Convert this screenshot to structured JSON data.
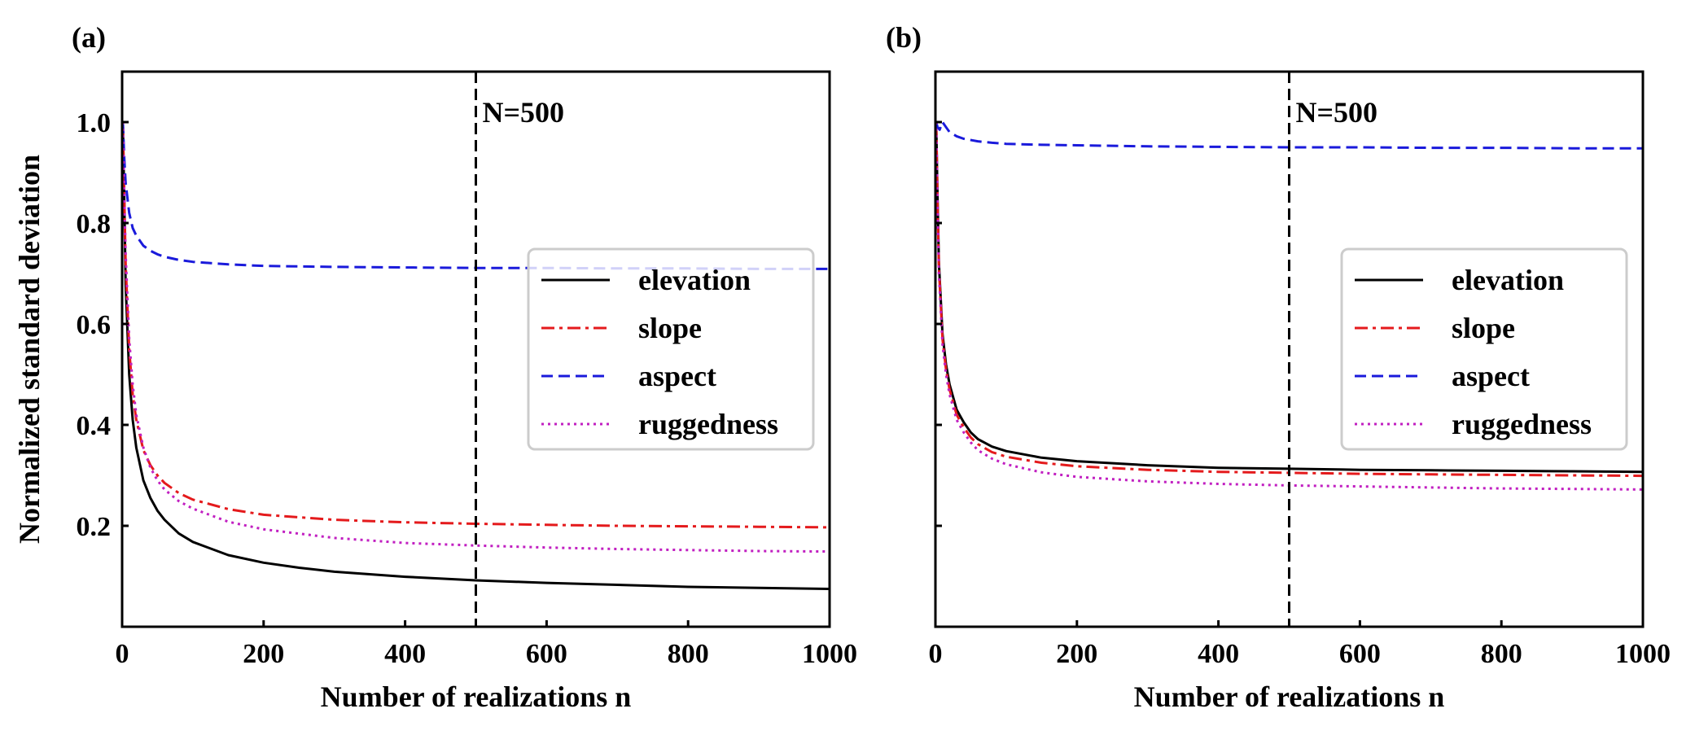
{
  "chart_data": [
    {
      "type": "line",
      "panel_label": "(a)",
      "xlabel": "Number of realizations n",
      "ylabel": "Normalized standard deviation",
      "xlim": [
        0,
        1000
      ],
      "ylim": [
        0,
        1.1
      ],
      "xticks": [
        0,
        200,
        400,
        600,
        800,
        1000
      ],
      "xtick_labels": [
        "0",
        "200",
        "400",
        "600",
        "800",
        "1000"
      ],
      "yticks": [
        0.2,
        0.4,
        0.6,
        0.8,
        1.0
      ],
      "ytick_labels": [
        "0.2",
        "0.4",
        "0.6",
        "0.8",
        "1.0"
      ],
      "vline": {
        "x": 500,
        "label": "N=500",
        "style": "dashed",
        "color": "#000000"
      },
      "legend_position": "right",
      "grid": false,
      "series": [
        {
          "name": "elevation",
          "color": "#000000",
          "style": "solid",
          "x": [
            1,
            3,
            5,
            10,
            15,
            20,
            30,
            40,
            50,
            60,
            80,
            100,
            150,
            200,
            250,
            300,
            400,
            500,
            600,
            700,
            800,
            900,
            1000
          ],
          "y": [
            1.0,
            0.85,
            0.68,
            0.5,
            0.41,
            0.355,
            0.29,
            0.255,
            0.23,
            0.212,
            0.185,
            0.168,
            0.142,
            0.127,
            0.117,
            0.109,
            0.099,
            0.092,
            0.087,
            0.083,
            0.079,
            0.077,
            0.075
          ]
        },
        {
          "name": "slope",
          "color": "#e41a1c",
          "style": "dashdot",
          "x": [
            1,
            3,
            5,
            10,
            15,
            20,
            30,
            40,
            50,
            60,
            80,
            100,
            150,
            200,
            300,
            400,
            500,
            600,
            700,
            800,
            900,
            1000
          ],
          "y": [
            1.0,
            0.86,
            0.72,
            0.55,
            0.46,
            0.41,
            0.35,
            0.32,
            0.3,
            0.285,
            0.265,
            0.252,
            0.233,
            0.222,
            0.212,
            0.207,
            0.204,
            0.202,
            0.2,
            0.199,
            0.198,
            0.197
          ]
        },
        {
          "name": "aspect",
          "color": "#1a1adb",
          "style": "dashed",
          "x": [
            1,
            3,
            5,
            10,
            15,
            20,
            30,
            40,
            50,
            60,
            80,
            100,
            150,
            200,
            300,
            400,
            500,
            600,
            700,
            800,
            900,
            1000
          ],
          "y": [
            1.0,
            0.93,
            0.88,
            0.82,
            0.79,
            0.775,
            0.755,
            0.745,
            0.738,
            0.733,
            0.727,
            0.723,
            0.718,
            0.715,
            0.713,
            0.712,
            0.711,
            0.711,
            0.71,
            0.71,
            0.709,
            0.709
          ]
        },
        {
          "name": "ruggedness",
          "color": "#c11fc1",
          "style": "dotted",
          "x": [
            1,
            3,
            5,
            10,
            15,
            20,
            30,
            40,
            50,
            60,
            80,
            100,
            150,
            200,
            300,
            400,
            500,
            600,
            700,
            800,
            900,
            1000
          ],
          "y": [
            1.0,
            0.86,
            0.74,
            0.57,
            0.48,
            0.42,
            0.355,
            0.315,
            0.29,
            0.272,
            0.249,
            0.234,
            0.208,
            0.193,
            0.176,
            0.166,
            0.161,
            0.157,
            0.154,
            0.152,
            0.15,
            0.149
          ]
        }
      ]
    },
    {
      "type": "line",
      "panel_label": "(b)",
      "xlabel": "Number of realizations n",
      "ylabel": "",
      "xlim": [
        0,
        1000
      ],
      "ylim": [
        0,
        1.1
      ],
      "xticks": [
        0,
        200,
        400,
        600,
        800,
        1000
      ],
      "xtick_labels": [
        "0",
        "200",
        "400",
        "600",
        "800",
        "1000"
      ],
      "yticks": [
        0.2,
        0.4,
        0.6,
        0.8,
        1.0
      ],
      "ytick_labels": [],
      "vline": {
        "x": 500,
        "label": "N=500",
        "style": "dashed",
        "color": "#000000"
      },
      "legend_position": "right",
      "grid": false,
      "series": [
        {
          "name": "elevation",
          "color": "#000000",
          "style": "solid",
          "x": [
            1,
            3,
            5,
            10,
            15,
            20,
            30,
            40,
            50,
            60,
            80,
            100,
            150,
            200,
            300,
            400,
            500,
            600,
            700,
            800,
            900,
            1000
          ],
          "y": [
            1.0,
            0.85,
            0.72,
            0.58,
            0.52,
            0.48,
            0.43,
            0.405,
            0.385,
            0.372,
            0.357,
            0.348,
            0.335,
            0.328,
            0.32,
            0.315,
            0.313,
            0.311,
            0.31,
            0.309,
            0.308,
            0.307
          ]
        },
        {
          "name": "slope",
          "color": "#e41a1c",
          "style": "dashdot",
          "x": [
            1,
            3,
            5,
            10,
            15,
            20,
            30,
            40,
            50,
            60,
            80,
            100,
            150,
            200,
            300,
            400,
            500,
            600,
            700,
            800,
            900,
            1000
          ],
          "y": [
            1.0,
            0.84,
            0.71,
            0.57,
            0.51,
            0.47,
            0.42,
            0.395,
            0.375,
            0.362,
            0.346,
            0.337,
            0.325,
            0.318,
            0.311,
            0.307,
            0.305,
            0.303,
            0.302,
            0.301,
            0.3,
            0.299
          ]
        },
        {
          "name": "aspect",
          "color": "#1a1adb",
          "style": "dashed",
          "x": [
            1,
            3,
            6,
            10,
            15,
            20,
            30,
            40,
            60,
            80,
            100,
            150,
            200,
            300,
            400,
            500,
            600,
            700,
            800,
            900,
            1000
          ],
          "y": [
            1.0,
            0.99,
            0.985,
            1.0,
            0.99,
            0.98,
            0.972,
            0.967,
            0.962,
            0.959,
            0.957,
            0.955,
            0.954,
            0.952,
            0.951,
            0.95,
            0.95,
            0.949,
            0.949,
            0.948,
            0.948
          ]
        },
        {
          "name": "ruggedness",
          "color": "#c11fc1",
          "style": "dotted",
          "x": [
            1,
            3,
            5,
            10,
            15,
            20,
            30,
            40,
            50,
            60,
            80,
            100,
            150,
            200,
            300,
            400,
            500,
            600,
            700,
            800,
            900,
            1000
          ],
          "y": [
            1.0,
            0.83,
            0.7,
            0.56,
            0.5,
            0.46,
            0.41,
            0.385,
            0.365,
            0.35,
            0.333,
            0.322,
            0.306,
            0.297,
            0.288,
            0.283,
            0.28,
            0.278,
            0.276,
            0.274,
            0.273,
            0.272
          ]
        }
      ]
    }
  ]
}
